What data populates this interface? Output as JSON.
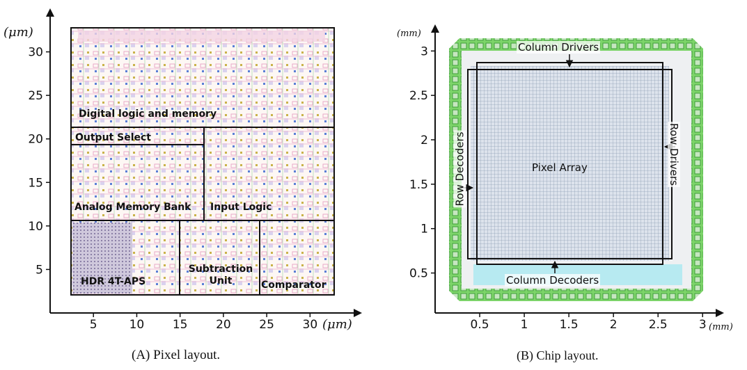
{
  "panels": [
    {
      "caption": "(A) Pixel layout.",
      "x_unit": "(μm)",
      "y_unit": "(μm)",
      "xlim": [
        0,
        36
      ],
      "ylim": [
        0,
        35
      ],
      "xticks": [
        5,
        10,
        15,
        20,
        25,
        30
      ],
      "yticks": [
        5,
        10,
        15,
        20,
        25,
        30
      ],
      "regions": [
        "Digital logic and memory",
        "Output Select",
        "Analog Memory Bank",
        "Input Logic",
        "HDR 4T-APS",
        "Subtraction Unit",
        "Comparator"
      ]
    },
    {
      "caption": "(B) Chip layout.",
      "x_unit": "(mm)",
      "y_unit": "(mm)",
      "xlim": [
        0,
        3.24
      ],
      "ylim": [
        0.05,
        3.3
      ],
      "xticks": [
        0.5,
        1,
        1.5,
        2,
        2.5,
        3
      ],
      "yticks": [
        0.5,
        1,
        1.5,
        2,
        2.5,
        3
      ],
      "regions": [
        "Column Drivers",
        "Row Drivers",
        "Pixel Array",
        "Row Decoders",
        "Column Decoders"
      ]
    }
  ]
}
